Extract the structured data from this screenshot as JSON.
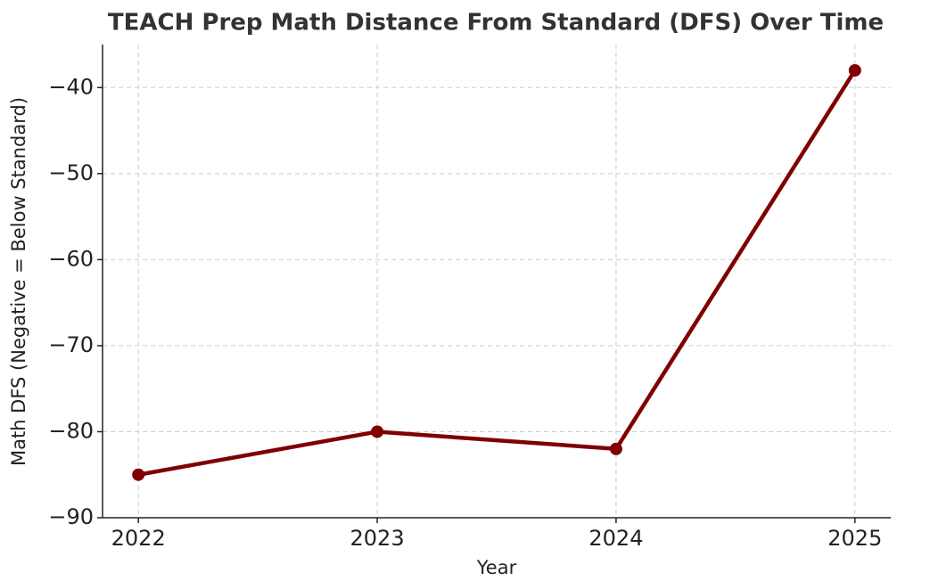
{
  "chart_data": {
    "type": "line",
    "title": "TEACH Prep Math Distance From Standard (DFS) Over Time",
    "x_label": "Year",
    "y_label": "Math DFS (Negative = Below Standard)",
    "x": [
      2022,
      2023,
      2024,
      2025
    ],
    "series": [
      {
        "name": "Math DFS",
        "color": "#800000",
        "values": [
          -85,
          -80,
          -82,
          -38
        ]
      }
    ],
    "xlim": [
      2021.85,
      2025.15
    ],
    "xticks": [
      2022,
      2023,
      2024,
      2025
    ],
    "ylim": [
      -90,
      -35
    ],
    "yticks": [
      {
        "value": -90,
        "label": "−90"
      },
      {
        "value": -80,
        "label": "−80"
      },
      {
        "value": -70,
        "label": "−70"
      },
      {
        "value": -60,
        "label": "−60"
      },
      {
        "value": -50,
        "label": "−50"
      },
      {
        "value": -40,
        "label": "−40"
      }
    ],
    "grid": true
  }
}
